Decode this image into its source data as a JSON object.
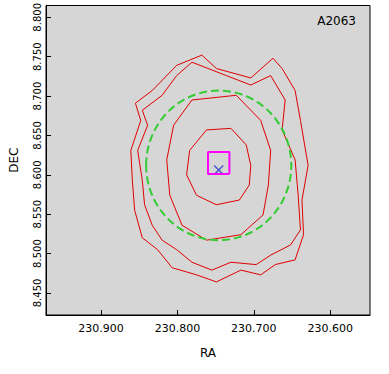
{
  "chart_data": {
    "type": "scatter",
    "annotation": "A2063",
    "xlabel": "RA",
    "ylabel": "DEC",
    "xlim": [
      230.972,
      230.548
    ],
    "xticks": [
      {
        "value": 230.9,
        "label": "230.900"
      },
      {
        "value": 230.8,
        "label": "230.800"
      },
      {
        "value": 230.7,
        "label": "230.700"
      },
      {
        "value": 230.6,
        "label": "230.600"
      }
    ],
    "ylim": [
      8.422,
      8.815
    ],
    "yticks": [
      {
        "value": 8.45,
        "label": "8.450"
      },
      {
        "value": 8.5,
        "label": "8.500"
      },
      {
        "value": 8.55,
        "label": "8.550"
      },
      {
        "value": 8.6,
        "label": "8.600"
      },
      {
        "value": 8.65,
        "label": "8.650"
      },
      {
        "value": 8.7,
        "label": "8.700"
      },
      {
        "value": 8.75,
        "label": "8.750"
      },
      {
        "value": 8.8,
        "label": "8.800"
      }
    ],
    "grid": false,
    "series": [
      {
        "type": "line",
        "color": "#e00000",
        "line_style": "solid",
        "values": [
          [
            230.762,
            8.657
          ],
          [
            230.73,
            8.659
          ],
          [
            230.71,
            8.638
          ],
          [
            230.704,
            8.612
          ],
          [
            230.706,
            8.587
          ],
          [
            230.719,
            8.568
          ],
          [
            230.749,
            8.562
          ],
          [
            230.775,
            8.574
          ],
          [
            230.788,
            8.6
          ],
          [
            230.784,
            8.631
          ],
          [
            230.762,
            8.657
          ]
        ]
      },
      {
        "type": "line",
        "color": "#e00000",
        "line_style": "solid",
        "values": [
          [
            230.781,
            8.695
          ],
          [
            230.723,
            8.701
          ],
          [
            230.691,
            8.669
          ],
          [
            230.678,
            8.631
          ],
          [
            230.681,
            8.587
          ],
          [
            230.688,
            8.549
          ],
          [
            230.717,
            8.524
          ],
          [
            230.762,
            8.517
          ],
          [
            230.794,
            8.536
          ],
          [
            230.81,
            8.574
          ],
          [
            230.814,
            8.619
          ],
          [
            230.805,
            8.663
          ],
          [
            230.781,
            8.695
          ]
        ]
      },
      {
        "type": "line",
        "color": "#e00000",
        "line_style": "solid",
        "values": [
          [
            230.82,
            8.701
          ],
          [
            230.801,
            8.726
          ],
          [
            230.781,
            8.743
          ],
          [
            230.736,
            8.726
          ],
          [
            230.704,
            8.714
          ],
          [
            230.678,
            8.726
          ],
          [
            230.659,
            8.695
          ],
          [
            230.663,
            8.657
          ],
          [
            230.646,
            8.619
          ],
          [
            230.642,
            8.574
          ],
          [
            230.639,
            8.53
          ],
          [
            230.652,
            8.511
          ],
          [
            230.678,
            8.498
          ],
          [
            230.697,
            8.486
          ],
          [
            230.73,
            8.489
          ],
          [
            230.755,
            8.479
          ],
          [
            230.781,
            8.489
          ],
          [
            230.801,
            8.505
          ],
          [
            230.82,
            8.517
          ],
          [
            230.833,
            8.536
          ],
          [
            230.843,
            8.562
          ],
          [
            230.846,
            8.593
          ],
          [
            230.852,
            8.631
          ],
          [
            230.839,
            8.663
          ],
          [
            230.846,
            8.682
          ],
          [
            230.82,
            8.701
          ]
        ]
      },
      {
        "type": "line",
        "color": "#e00000",
        "line_style": "solid",
        "values": [
          [
            230.833,
            8.707
          ],
          [
            230.801,
            8.739
          ],
          [
            230.768,
            8.752
          ],
          [
            230.749,
            8.735
          ],
          [
            230.704,
            8.723
          ],
          [
            230.675,
            8.748
          ],
          [
            230.663,
            8.735
          ],
          [
            230.646,
            8.707
          ],
          [
            230.639,
            8.669
          ],
          [
            230.629,
            8.612
          ],
          [
            230.637,
            8.568
          ],
          [
            230.635,
            8.524
          ],
          [
            230.646,
            8.492
          ],
          [
            230.672,
            8.486
          ],
          [
            230.691,
            8.473
          ],
          [
            230.717,
            8.479
          ],
          [
            230.749,
            8.464
          ],
          [
            230.775,
            8.473
          ],
          [
            230.807,
            8.482
          ],
          [
            230.826,
            8.505
          ],
          [
            230.846,
            8.52
          ],
          [
            230.856,
            8.555
          ],
          [
            230.859,
            8.593
          ],
          [
            230.861,
            8.631
          ],
          [
            230.848,
            8.669
          ],
          [
            230.855,
            8.691
          ],
          [
            230.833,
            8.707
          ]
        ]
      },
      {
        "type": "circle",
        "color": "#33cc33",
        "line_style": "dashed",
        "center": [
          230.746,
          8.612
        ],
        "radius": 0.095
      },
      {
        "type": "box",
        "color": "#ff00ff",
        "line_style": "solid",
        "center": [
          230.746,
          8.615
        ],
        "half_width": 0.014
      },
      {
        "type": "scatter",
        "color": "#2233cc",
        "marker": "x",
        "values": [
          [
            230.746,
            8.606
          ]
        ]
      }
    ]
  }
}
